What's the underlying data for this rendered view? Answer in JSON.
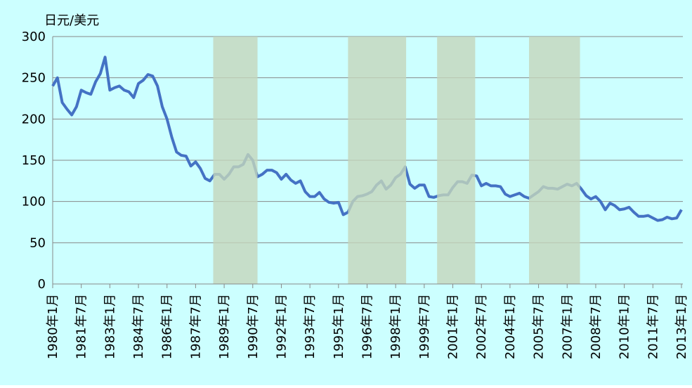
{
  "chart_data": {
    "type": "line",
    "y_axis_title": "日元/美元",
    "categories": [
      "1980年1月",
      null,
      null,
      null,
      null,
      null,
      "1981年7月",
      null,
      null,
      null,
      null,
      null,
      "1983年1月",
      null,
      null,
      null,
      null,
      null,
      "1984年7月",
      null,
      null,
      null,
      null,
      null,
      "1986年1月",
      null,
      null,
      null,
      null,
      null,
      "1987年7月",
      null,
      null,
      null,
      null,
      null,
      "1989年1月",
      null,
      null,
      null,
      null,
      null,
      "1990年7月",
      null,
      null,
      null,
      null,
      null,
      "1992年1月",
      null,
      null,
      null,
      null,
      null,
      "1993年7月",
      null,
      null,
      null,
      null,
      null,
      "1995年1月",
      null,
      null,
      null,
      null,
      null,
      "1996年7月",
      null,
      null,
      null,
      null,
      null,
      "1998年1月",
      null,
      null,
      null,
      null,
      null,
      "1999年7月",
      null,
      null,
      null,
      null,
      null,
      "2001年1月",
      null,
      null,
      null,
      null,
      null,
      "2002年7月",
      null,
      null,
      null,
      null,
      null,
      "2004年1月",
      null,
      null,
      null,
      null,
      null,
      "2005年7月",
      null,
      null,
      null,
      null,
      null,
      "2007年1月",
      null,
      null,
      null,
      null,
      null,
      "2008年7月",
      null,
      null,
      null,
      null,
      null,
      "2010年1月",
      null,
      null,
      null,
      null,
      null,
      "2011年7月",
      null,
      null,
      null,
      null,
      null,
      "2013年1月"
    ],
    "series": [
      {
        "color": "#4472c4",
        "values": [
          240,
          250,
          220,
          212,
          205,
          215,
          235,
          232,
          230,
          245,
          255,
          275,
          235,
          238,
          240,
          235,
          233,
          226,
          243,
          247,
          254,
          252,
          240,
          215,
          200,
          178,
          160,
          156,
          155,
          143,
          148,
          140,
          128,
          125,
          133,
          133,
          127,
          133,
          142,
          142,
          145,
          157,
          150,
          130,
          133,
          138,
          138,
          135,
          127,
          133,
          126,
          122,
          125,
          112,
          106,
          106,
          111,
          103,
          99,
          98,
          99,
          84,
          87,
          100,
          106,
          107,
          109,
          112,
          120,
          125,
          115,
          120,
          129,
          133,
          142,
          121,
          116,
          120,
          120,
          106,
          105,
          107,
          108,
          108,
          117,
          124,
          124,
          122,
          132,
          131,
          119,
          122,
          119,
          119,
          118,
          109,
          106,
          108,
          110,
          106,
          104,
          108,
          112,
          118,
          116,
          116,
          115,
          118,
          121,
          119,
          122,
          115,
          107,
          103,
          106,
          100,
          90,
          98,
          95,
          90,
          91,
          93,
          87,
          82,
          82,
          83,
          80,
          77,
          78,
          81,
          79,
          80,
          90
        ]
      }
    ],
    "shaded_ranges": [
      [
        33.7,
        43
      ],
      [
        62,
        74.2
      ],
      [
        80.7,
        88.7
      ],
      [
        100,
        110.7
      ]
    ],
    "shade_color": "#c4d6bc",
    "ylim": [
      0,
      300
    ],
    "yticks": [
      0,
      50,
      100,
      150,
      200,
      250,
      300
    ],
    "grid": true,
    "background": "#ccffff"
  }
}
